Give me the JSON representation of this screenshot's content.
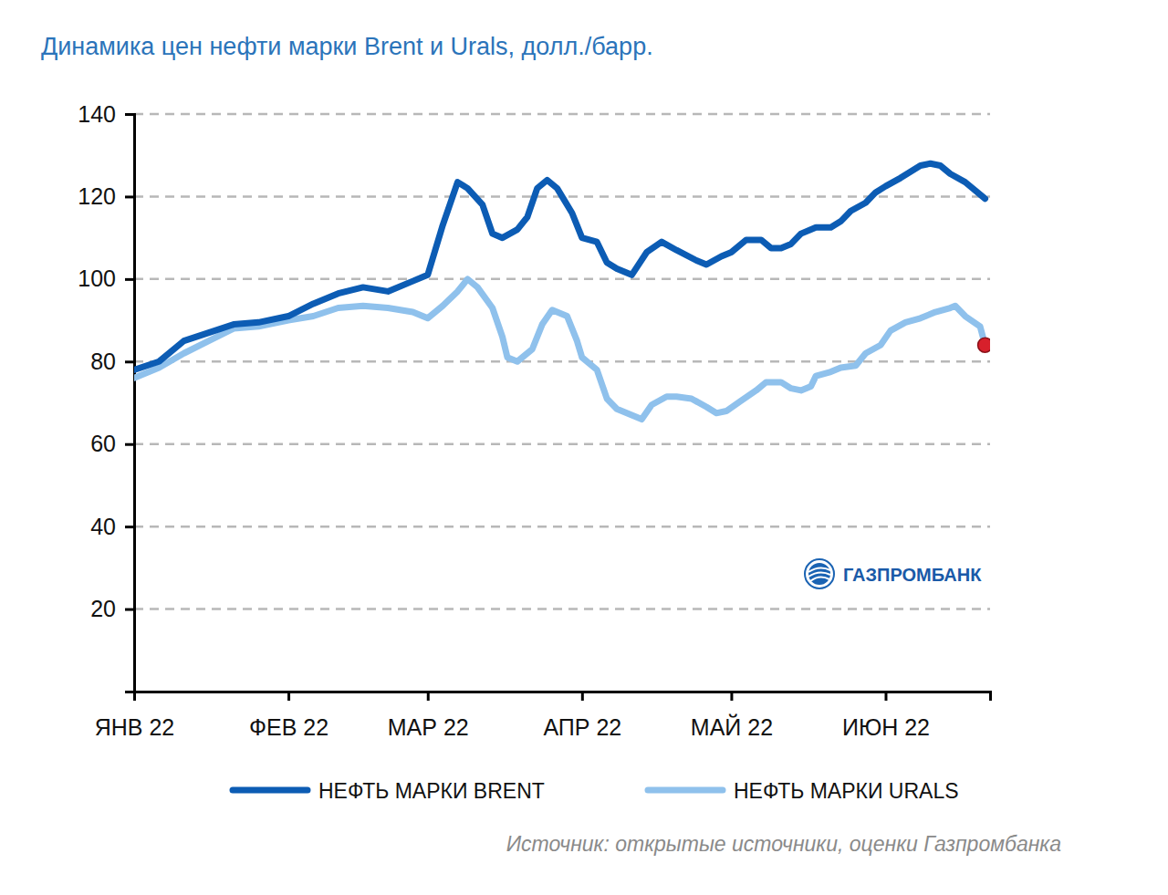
{
  "chart_data": {
    "type": "line",
    "title": "Динамика цен нефти марки Brent и Urals, долл./барр.",
    "source": "Источник: открытые источники, оценки Газпромбанка",
    "logo": "ГАЗПРОМБАНК",
    "xlim": [
      0,
      172
    ],
    "xticks": [
      {
        "value": 0,
        "label": "ЯНВ 22"
      },
      {
        "value": 31,
        "label": "ФЕВ 22"
      },
      {
        "value": 59,
        "label": "МАР 22"
      },
      {
        "value": 90,
        "label": "АПР 22"
      },
      {
        "value": 120,
        "label": "МАЙ 22"
      },
      {
        "value": 151,
        "label": "ИЮН 22"
      }
    ],
    "ylim": [
      0,
      140
    ],
    "yticks": [
      20,
      40,
      60,
      80,
      100,
      120,
      140
    ],
    "grid": true,
    "legend": "bottom",
    "series": [
      {
        "name": "НЕФТЬ МАРКИ BRENT",
        "color": "#0c5cb4",
        "x": [
          0,
          5,
          10,
          15,
          20,
          25,
          31,
          36,
          41,
          46,
          51,
          56,
          59,
          62,
          65,
          67,
          70,
          72,
          74,
          77,
          79,
          81,
          83,
          85,
          88,
          90,
          93,
          95,
          97,
          100,
          103,
          106,
          109,
          113,
          115,
          118,
          120,
          123,
          126,
          128,
          130,
          132,
          134,
          137,
          140,
          142,
          144,
          147,
          149,
          151,
          154,
          156,
          158,
          160,
          162,
          164,
          167,
          171
        ],
        "values": [
          78,
          80,
          85,
          87,
          89,
          89.5,
          91,
          94,
          96.5,
          98,
          97,
          99.5,
          101,
          113,
          123.5,
          122,
          118,
          111,
          110,
          112,
          115,
          122,
          124,
          122,
          116,
          110,
          109,
          104,
          102.5,
          101,
          106.5,
          109,
          107,
          104.5,
          103.5,
          105.5,
          106.5,
          109.5,
          109.5,
          107.5,
          107.5,
          108.5,
          111,
          112.5,
          112.5,
          114,
          116.5,
          118.5,
          121,
          122.5,
          124.5,
          126,
          127.5,
          128,
          127.5,
          125.5,
          123.5,
          119.5
        ]
      },
      {
        "name": "НЕФТЬ МАРКИ URALS",
        "color": "#8fc1ec",
        "x": [
          0,
          5,
          10,
          15,
          20,
          25,
          31,
          36,
          41,
          46,
          51,
          56,
          59,
          62,
          65,
          67,
          69,
          72,
          74,
          75,
          77,
          80,
          82,
          84,
          87,
          89,
          90,
          93,
          95,
          97,
          100,
          102,
          104,
          107,
          109,
          112,
          115,
          117,
          119,
          122,
          125,
          127,
          130,
          132,
          134,
          136,
          137,
          140,
          142,
          145,
          147,
          150,
          152,
          155,
          158,
          161,
          164,
          165,
          167,
          170,
          171
        ],
        "values": [
          76,
          78.5,
          82,
          85,
          88,
          88.5,
          90,
          91,
          93,
          93.5,
          93,
          92,
          90.5,
          93.5,
          97,
          100,
          98,
          93,
          86,
          81,
          80,
          83,
          89,
          92.5,
          91,
          85,
          81,
          78,
          71,
          68.5,
          67,
          66,
          69.5,
          71.5,
          71.5,
          71,
          69,
          67.5,
          68,
          70.5,
          73,
          75,
          75,
          73.5,
          73,
          74,
          76.5,
          77.5,
          78.5,
          79,
          82,
          84,
          87.5,
          89.5,
          90.5,
          92,
          93,
          93.5,
          91,
          88.5,
          84
        ]
      }
    ],
    "markers": [
      {
        "x": 171,
        "y": 84,
        "color": "#d7202b"
      }
    ]
  }
}
